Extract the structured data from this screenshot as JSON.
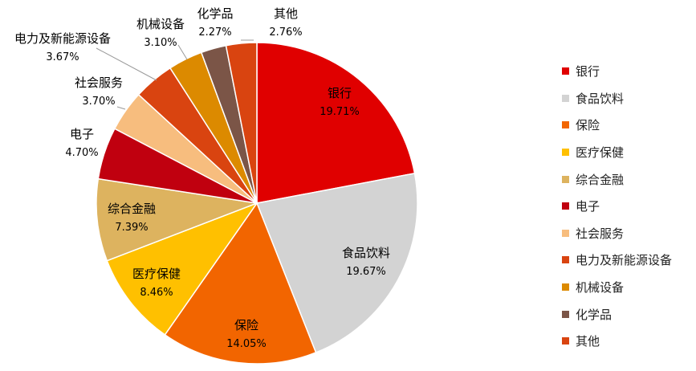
{
  "chart_data": {
    "type": "pie",
    "categories": [
      "银行",
      "食品饮料",
      "保险",
      "医疗保健",
      "综合金融",
      "电子",
      "社会服务",
      "电力及新能源设备",
      "机械设备",
      "化学品",
      "其他"
    ],
    "values": [
      19.71,
      19.67,
      14.05,
      8.46,
      7.39,
      4.7,
      3.7,
      3.67,
      3.1,
      2.27,
      2.76
    ],
    "value_labels": [
      "19.71%",
      "19.67%",
      "14.05%",
      "8.46%",
      "7.39%",
      "4.70%",
      "3.70%",
      "3.67%",
      "3.10%",
      "2.27%",
      "2.76%"
    ],
    "colors": [
      "#E00000",
      "#D3D3D3",
      "#F26500",
      "#FFC000",
      "#DDB35F",
      "#C0000F",
      "#F7BD7E",
      "#D94410",
      "#DC8A00",
      "#7B5547",
      "#D94410"
    ],
    "legend_position": "right"
  }
}
